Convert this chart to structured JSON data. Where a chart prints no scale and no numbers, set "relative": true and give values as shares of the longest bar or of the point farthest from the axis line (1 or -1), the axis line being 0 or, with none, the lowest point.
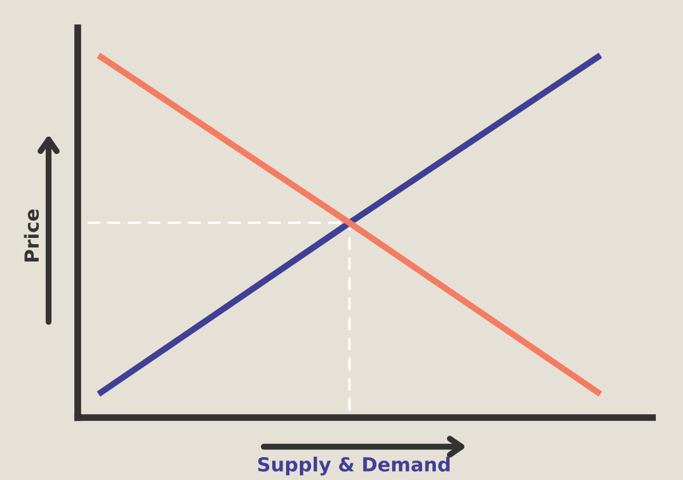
{
  "chart_data": {
    "type": "line",
    "relative": true,
    "xlabel": "Supply & Demand",
    "ylabel": "Price",
    "categories": [
      null,
      null,
      null
    ],
    "grid": false,
    "legend": false,
    "marker": "none",
    "line_style": "solid",
    "series": [
      {
        "color": "#3f3f95",
        "values": [
          0.07,
          0.54,
          1
        ]
      },
      {
        "color": "#f47c62",
        "values": [
          1,
          0.54,
          0.07
        ]
      }
    ],
    "ref_lines": [
      {
        "axis": "y",
        "value": 0.54,
        "color": "#ffffff",
        "line_style": "dashed"
      }
    ]
  }
}
